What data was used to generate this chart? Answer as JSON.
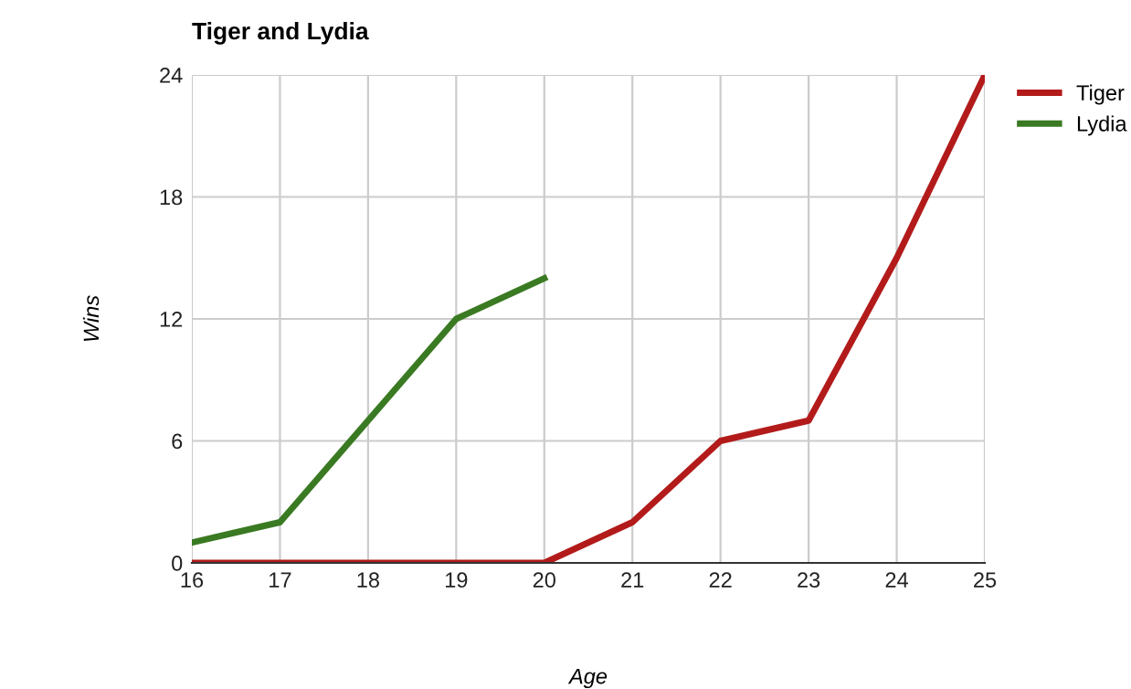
{
  "chart_data": {
    "type": "line",
    "title": "Tiger and Lydia",
    "xlabel": "Age",
    "ylabel": "Wins",
    "x": [
      16,
      17,
      18,
      19,
      20,
      21,
      22,
      23,
      24,
      25
    ],
    "series": [
      {
        "name": "Tiger",
        "color": "#b31b1b",
        "values": [
          0,
          0,
          0,
          0,
          0,
          2,
          6,
          7,
          15,
          24
        ]
      },
      {
        "name": "Lydia",
        "color": "#3a7a22",
        "values": [
          1,
          2,
          7,
          12,
          14,
          null,
          null,
          null,
          null,
          null
        ]
      }
    ],
    "xlim": [
      16,
      25
    ],
    "xticks": [
      16,
      17,
      18,
      19,
      20,
      21,
      22,
      23,
      24,
      25
    ],
    "ylim": [
      0,
      24
    ],
    "yticks": [
      0,
      6,
      12,
      18,
      24
    ],
    "grid": true,
    "legend": "top right",
    "marker": "none",
    "line_style": "solid"
  }
}
